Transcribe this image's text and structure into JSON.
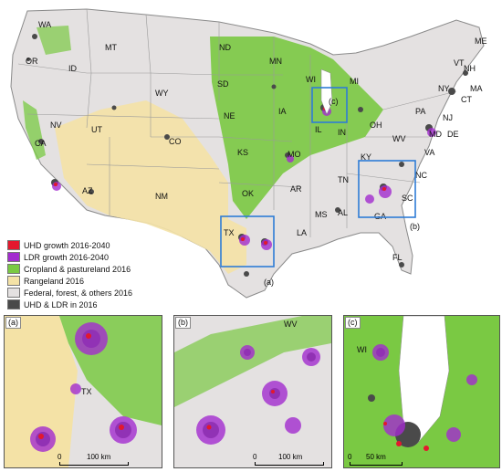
{
  "legend": [
    {
      "label": "UHD growth 2016-2040",
      "color": "#e3182d"
    },
    {
      "label": "LDR growth 2016-2040",
      "color": "#a32ccf"
    },
    {
      "label": "Cropland & pastureland 2016",
      "color": "#7ac943"
    },
    {
      "label": "Rangeland 2016",
      "color": "#f4e2a6"
    },
    {
      "label": "Federal, forest, & others 2016",
      "color": "#e4e1e1"
    },
    {
      "label": "UHD & LDR in 2016",
      "color": "#4a4a4a"
    }
  ],
  "states": [
    "WA",
    "OR",
    "ID",
    "MT",
    "ND",
    "SD",
    "WY",
    "NE",
    "NV",
    "UT",
    "CO",
    "KS",
    "AZ",
    "NM",
    "TX",
    "MN",
    "WI",
    "IA",
    "MO",
    "AR",
    "MS",
    "MI",
    "IL",
    "IN",
    "OH",
    "KY",
    "TN",
    "AL",
    "GA",
    "SC",
    "NC",
    "VA",
    "WV",
    "PA",
    "NY",
    "VT",
    "NH",
    "ME",
    "MA",
    "CT",
    "NJ",
    "MD",
    "DE",
    "FL",
    "LA",
    "OK",
    "CA"
  ],
  "callouts": {
    "a": "(a)",
    "b": "(b)",
    "c": "(c)"
  },
  "panels": [
    {
      "tag": "(a)",
      "scale_zero": "0",
      "scale_label": "100 km",
      "state_label": "TX"
    },
    {
      "tag": "(b)",
      "scale_zero": "0",
      "scale_label": "100 km",
      "state_label": "WV"
    },
    {
      "tag": "(c)",
      "scale_zero": "0",
      "scale_label": "50 km",
      "state_label": "WI"
    }
  ]
}
